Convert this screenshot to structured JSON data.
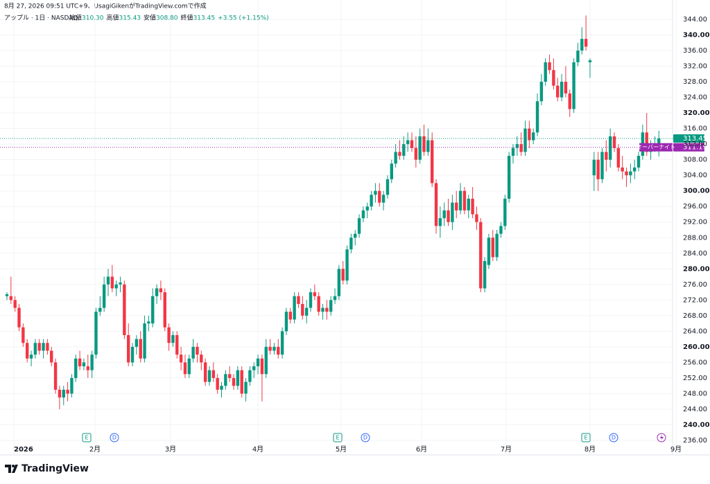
{
  "header": {
    "created": "8月 27, 2026 09:51 UTC+9、UsagiGikenがTradingView.comで作成",
    "symbol": "アップル · 1日 · NASDAQ",
    "quote": [
      {
        "label": "始値",
        "value": "310.30"
      },
      {
        "label": "高値",
        "value": "315.43"
      },
      {
        "label": "安値",
        "value": "308.80"
      },
      {
        "label": "終値",
        "value": "313.45"
      }
    ],
    "change": "+3.55 (+1.15%)"
  },
  "logo": "TradingView",
  "chart_data": {
    "type": "candlestick",
    "up_color": "#089981",
    "down_color": "#f23645",
    "x_labels": [
      "2026",
      "2月",
      "3月",
      "4月",
      "5月",
      "6月",
      "7月",
      "8月",
      "9月"
    ],
    "ylim": [
      236,
      344
    ],
    "yticks": [
      {
        "value": 236,
        "label": "236.00"
      },
      {
        "value": 240,
        "label": "240.00"
      },
      {
        "value": 244,
        "label": "244.00"
      },
      {
        "value": 248,
        "label": "248.00"
      },
      {
        "value": 252,
        "label": "252.00"
      },
      {
        "value": 256,
        "label": "256.00"
      },
      {
        "value": 260,
        "label": "260.00"
      },
      {
        "value": 264,
        "label": "264.00"
      },
      {
        "value": 268,
        "label": "268.00"
      },
      {
        "value": 272,
        "label": "272.00"
      },
      {
        "value": 276,
        "label": "276.00"
      },
      {
        "value": 280,
        "label": "280.00"
      },
      {
        "value": 284,
        "label": "284.00"
      },
      {
        "value": 288,
        "label": "288.00"
      },
      {
        "value": 292,
        "label": "292.00"
      },
      {
        "value": 296,
        "label": "296.00"
      },
      {
        "value": 300,
        "label": "300.00"
      },
      {
        "value": 304,
        "label": "304.00"
      },
      {
        "value": 308,
        "label": "308.00"
      },
      {
        "value": 312,
        "label": "312.00"
      },
      {
        "value": 316,
        "label": "316.00"
      },
      {
        "value": 320,
        "label": "320.00"
      },
      {
        "value": 324,
        "label": "324.00"
      },
      {
        "value": 328,
        "label": "328.00"
      },
      {
        "value": 332,
        "label": "332.00"
      },
      {
        "value": 336,
        "label": "336.00"
      },
      {
        "value": 340,
        "label": "340.00"
      },
      {
        "value": 344,
        "label": "344.00"
      }
    ],
    "grid": true,
    "last_price": {
      "value": 313.45,
      "label": "313.45",
      "color": "#089981"
    },
    "overnight": {
      "value": 311.19,
      "label": "311.19",
      "name": "オーバーナイト",
      "color": "#9c27b0"
    },
    "events": [
      "E",
      "D",
      "E",
      "D",
      "E",
      "D"
    ],
    "ohlc": [
      [
        273,
        274,
        272,
        273.5
      ],
      [
        273,
        278,
        271,
        272
      ],
      [
        272,
        273,
        269,
        270
      ],
      [
        270,
        271,
        264,
        265
      ],
      [
        265,
        266,
        260,
        261
      ],
      [
        261,
        262,
        256,
        257
      ],
      [
        257,
        259,
        255,
        258
      ],
      [
        258,
        262,
        257,
        261
      ],
      [
        261,
        262,
        258,
        259
      ],
      [
        259,
        262,
        257,
        261
      ],
      [
        261,
        262,
        258,
        259
      ],
      [
        259,
        260,
        255,
        256
      ],
      [
        256,
        257,
        248,
        249
      ],
      [
        249,
        250,
        244,
        247
      ],
      [
        247,
        250,
        245,
        249
      ],
      [
        249,
        251,
        246,
        248
      ],
      [
        248,
        253,
        247,
        252
      ],
      [
        252,
        258,
        251,
        257
      ],
      [
        257,
        259,
        254,
        255
      ],
      [
        255,
        257,
        254,
        256
      ],
      [
        255,
        258,
        252,
        254
      ],
      [
        254,
        259,
        252,
        258
      ],
      [
        258,
        270,
        257,
        269
      ],
      [
        269,
        273,
        268,
        270
      ],
      [
        270,
        278,
        269,
        276
      ],
      [
        276,
        280,
        273,
        278
      ],
      [
        278,
        281,
        274,
        275
      ],
      [
        275,
        277,
        273,
        276
      ],
      [
        276,
        278,
        274,
        276.5
      ],
      [
        276,
        277,
        262,
        263
      ],
      [
        263,
        266,
        255,
        256
      ],
      [
        256,
        261,
        255,
        260
      ],
      [
        260,
        263,
        258,
        262
      ],
      [
        262,
        264,
        256,
        257
      ],
      [
        257,
        268,
        256,
        266
      ],
      [
        266,
        268,
        264,
        266.5
      ],
      [
        266,
        275,
        265,
        273
      ],
      [
        273,
        276,
        271,
        275
      ],
      [
        275,
        277,
        272,
        274
      ],
      [
        274,
        275,
        264,
        265
      ],
      [
        265,
        266,
        259,
        261
      ],
      [
        261,
        264,
        260,
        263
      ],
      [
        263,
        264,
        257,
        258
      ],
      [
        258,
        260,
        254,
        256
      ],
      [
        256,
        258,
        252,
        253
      ],
      [
        253,
        258,
        252,
        257
      ],
      [
        257,
        262,
        256,
        260
      ],
      [
        260,
        261,
        256,
        258
      ],
      [
        258,
        259,
        254,
        256
      ],
      [
        256,
        257,
        250,
        251
      ],
      [
        251,
        255,
        250,
        254
      ],
      [
        254,
        256,
        251,
        252
      ],
      [
        252,
        253,
        248,
        249
      ],
      [
        249,
        251,
        247,
        250
      ],
      [
        250,
        254,
        249,
        253
      ],
      [
        253,
        255,
        251,
        252
      ],
      [
        252,
        253,
        249,
        250
      ],
      [
        250,
        255,
        249,
        254
      ],
      [
        254,
        255,
        247,
        248
      ],
      [
        248,
        252,
        246,
        251
      ],
      [
        251,
        255,
        250,
        254
      ],
      [
        254,
        256,
        252,
        255
      ],
      [
        255,
        258,
        253,
        257
      ],
      [
        257,
        258,
        246,
        253
      ],
      [
        253,
        262,
        252,
        260
      ],
      [
        260,
        262,
        258,
        259
      ],
      [
        259,
        261,
        258,
        260
      ],
      [
        260,
        262,
        257,
        258
      ],
      [
        258,
        265,
        257,
        264
      ],
      [
        264,
        270,
        263,
        269
      ],
      [
        269,
        270,
        266,
        267
      ],
      [
        267,
        274,
        266,
        273
      ],
      [
        273,
        274,
        270,
        271
      ],
      [
        271,
        273,
        267,
        268
      ],
      [
        268,
        272,
        266,
        270
      ],
      [
        270,
        275,
        269,
        274
      ],
      [
        274,
        276,
        272,
        273
      ],
      [
        273,
        274,
        268,
        269
      ],
      [
        269,
        271,
        267,
        270
      ],
      [
        270,
        272,
        267,
        269
      ],
      [
        269,
        273,
        268,
        272
      ],
      [
        272,
        275,
        271,
        273
      ],
      [
        273,
        281,
        272,
        280
      ],
      [
        280,
        282,
        276,
        277
      ],
      [
        277,
        286,
        276,
        285
      ],
      [
        285,
        289,
        284,
        288
      ],
      [
        288,
        290,
        286,
        289
      ],
      [
        289,
        294,
        288,
        293
      ],
      [
        293,
        296,
        292,
        295
      ],
      [
        295,
        297,
        293,
        296
      ],
      [
        296,
        300,
        295,
        299
      ],
      [
        299,
        302,
        297,
        300
      ],
      [
        300,
        302,
        296,
        297
      ],
      [
        297,
        300,
        295,
        299
      ],
      [
        299,
        304,
        298,
        303
      ],
      [
        303,
        308,
        302,
        307
      ],
      [
        307,
        312,
        306,
        310
      ],
      [
        310,
        313,
        308,
        309
      ],
      [
        309,
        314,
        308,
        312
      ],
      [
        312,
        315,
        310,
        313
      ],
      [
        313,
        315,
        310,
        311
      ],
      [
        311,
        314,
        306,
        308
      ],
      [
        308,
        316,
        307,
        314
      ],
      [
        314,
        317,
        309,
        310
      ],
      [
        310,
        316,
        309,
        313
      ],
      [
        313,
        315,
        301,
        302
      ],
      [
        302,
        303,
        289,
        291
      ],
      [
        291,
        296,
        288,
        293
      ],
      [
        293,
        297,
        291,
        295
      ],
      [
        295,
        298,
        291,
        292
      ],
      [
        292,
        299,
        290,
        297
      ],
      [
        297,
        300,
        293,
        295
      ],
      [
        295,
        302,
        294,
        300
      ],
      [
        300,
        301,
        294,
        295
      ],
      [
        295,
        299,
        293,
        298
      ],
      [
        298,
        301,
        293,
        294
      ],
      [
        294,
        296,
        290,
        292
      ],
      [
        292,
        293,
        274,
        275
      ],
      [
        275,
        283,
        274,
        282
      ],
      [
        281,
        289,
        280,
        288
      ],
      [
        288,
        290,
        282,
        283
      ],
      [
        283,
        290,
        282,
        289
      ],
      [
        289,
        292,
        288,
        291
      ],
      [
        291,
        299,
        290,
        298
      ],
      [
        298,
        310,
        297,
        309
      ],
      [
        309,
        312,
        307,
        311
      ],
      [
        311,
        314,
        309,
        312
      ],
      [
        312,
        315,
        309,
        310
      ],
      [
        310,
        318,
        309,
        316
      ],
      [
        316,
        318,
        311,
        313
      ],
      [
        313,
        316,
        312,
        315
      ],
      [
        315,
        325,
        314,
        323
      ],
      [
        323,
        330,
        322,
        328
      ],
      [
        328,
        334,
        327,
        333
      ],
      [
        333,
        335,
        330,
        331
      ],
      [
        331,
        334,
        326,
        327
      ],
      [
        327,
        329,
        323,
        324
      ],
      [
        324,
        330,
        323,
        328
      ],
      [
        328,
        332,
        324,
        325
      ],
      [
        325,
        326,
        319,
        321
      ],
      [
        321,
        334,
        320,
        333
      ],
      [
        333,
        338,
        332,
        336
      ],
      [
        336,
        342,
        335,
        339
      ],
      [
        339,
        345,
        336,
        337
      ],
      [
        333,
        334,
        329,
        333.5
      ],
      [
        304,
        310,
        300,
        308
      ],
      [
        308,
        310,
        300,
        303
      ],
      [
        303,
        311,
        302,
        310
      ],
      [
        310,
        313,
        305,
        308
      ],
      [
        308,
        316,
        306,
        314
      ],
      [
        314,
        315,
        310,
        311
      ],
      [
        311,
        312,
        305,
        306
      ],
      [
        306,
        309,
        303,
        305
      ],
      [
        305,
        306,
        301,
        304
      ],
      [
        304,
        307,
        302,
        305
      ],
      [
        305,
        308,
        303,
        306
      ],
      [
        306,
        310,
        305,
        309
      ],
      [
        309,
        317,
        308,
        315
      ],
      [
        315,
        320,
        309,
        310
      ],
      [
        310,
        313,
        308,
        311
      ],
      [
        311,
        314,
        310,
        312
      ],
      [
        310.3,
        315.43,
        308.8,
        313.45
      ]
    ]
  }
}
